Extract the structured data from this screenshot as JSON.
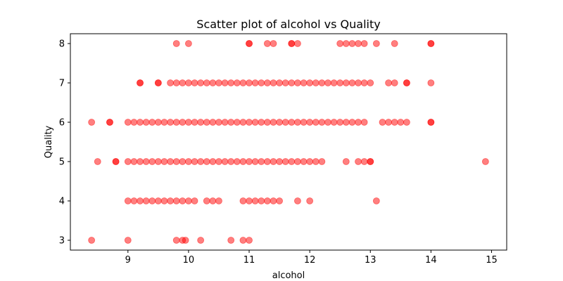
{
  "chart_data": {
    "type": "scatter",
    "title": "Scatter plot of alcohol vs Quality",
    "xlabel": "alcohol",
    "ylabel": "Quality",
    "xlim": [
      8.05,
      15.25
    ],
    "ylim": [
      2.75,
      8.25
    ],
    "xticks": [
      9,
      10,
      11,
      12,
      13,
      14,
      15
    ],
    "yticks": [
      3,
      4,
      5,
      6,
      7,
      8
    ],
    "grid": false,
    "marker_color": "#ff0000",
    "marker_alpha": 0.5,
    "series": [
      {
        "points": [
          [
            9.8,
            8
          ],
          [
            10.0,
            8
          ],
          [
            11.0,
            8
          ],
          [
            11.0,
            8
          ],
          [
            11.3,
            8
          ],
          [
            11.4,
            8
          ],
          [
            11.7,
            8
          ],
          [
            11.7,
            8
          ],
          [
            11.8,
            8
          ],
          [
            12.5,
            8
          ],
          [
            12.6,
            8
          ],
          [
            12.7,
            8
          ],
          [
            12.8,
            8
          ],
          [
            12.9,
            8
          ],
          [
            13.1,
            8
          ],
          [
            13.4,
            8
          ],
          [
            14.0,
            8
          ],
          [
            14.0,
            8
          ],
          [
            9.2,
            7
          ],
          [
            9.2,
            7
          ],
          [
            9.5,
            7
          ],
          [
            9.5,
            7
          ],
          [
            9.7,
            7
          ],
          [
            9.8,
            7
          ],
          [
            9.9,
            7
          ],
          [
            10.0,
            7
          ],
          [
            10.1,
            7
          ],
          [
            10.2,
            7
          ],
          [
            10.3,
            7
          ],
          [
            10.4,
            7
          ],
          [
            10.5,
            7
          ],
          [
            10.6,
            7
          ],
          [
            10.7,
            7
          ],
          [
            10.8,
            7
          ],
          [
            10.9,
            7
          ],
          [
            11.0,
            7
          ],
          [
            11.1,
            7
          ],
          [
            11.2,
            7
          ],
          [
            11.3,
            7
          ],
          [
            11.4,
            7
          ],
          [
            11.5,
            7
          ],
          [
            11.6,
            7
          ],
          [
            11.7,
            7
          ],
          [
            11.8,
            7
          ],
          [
            11.9,
            7
          ],
          [
            12.0,
            7
          ],
          [
            12.1,
            7
          ],
          [
            12.2,
            7
          ],
          [
            12.3,
            7
          ],
          [
            12.4,
            7
          ],
          [
            12.5,
            7
          ],
          [
            12.6,
            7
          ],
          [
            12.7,
            7
          ],
          [
            12.8,
            7
          ],
          [
            12.9,
            7
          ],
          [
            13.0,
            7
          ],
          [
            13.3,
            7
          ],
          [
            13.4,
            7
          ],
          [
            13.6,
            7
          ],
          [
            13.6,
            7
          ],
          [
            14.0,
            7
          ],
          [
            8.4,
            6
          ],
          [
            8.7,
            6
          ],
          [
            8.7,
            6
          ],
          [
            9.0,
            6
          ],
          [
            9.1,
            6
          ],
          [
            9.2,
            6
          ],
          [
            9.3,
            6
          ],
          [
            9.4,
            6
          ],
          [
            9.5,
            6
          ],
          [
            9.6,
            6
          ],
          [
            9.7,
            6
          ],
          [
            9.8,
            6
          ],
          [
            9.9,
            6
          ],
          [
            10.0,
            6
          ],
          [
            10.1,
            6
          ],
          [
            10.2,
            6
          ],
          [
            10.3,
            6
          ],
          [
            10.4,
            6
          ],
          [
            10.5,
            6
          ],
          [
            10.6,
            6
          ],
          [
            10.7,
            6
          ],
          [
            10.8,
            6
          ],
          [
            10.9,
            6
          ],
          [
            11.0,
            6
          ],
          [
            11.1,
            6
          ],
          [
            11.2,
            6
          ],
          [
            11.3,
            6
          ],
          [
            11.4,
            6
          ],
          [
            11.5,
            6
          ],
          [
            11.6,
            6
          ],
          [
            11.7,
            6
          ],
          [
            11.8,
            6
          ],
          [
            11.9,
            6
          ],
          [
            12.0,
            6
          ],
          [
            12.1,
            6
          ],
          [
            12.2,
            6
          ],
          [
            12.3,
            6
          ],
          [
            12.4,
            6
          ],
          [
            12.5,
            6
          ],
          [
            12.6,
            6
          ],
          [
            12.7,
            6
          ],
          [
            12.8,
            6
          ],
          [
            12.9,
            6
          ],
          [
            13.2,
            6
          ],
          [
            13.3,
            6
          ],
          [
            13.4,
            6
          ],
          [
            13.5,
            6
          ],
          [
            13.6,
            6
          ],
          [
            14.0,
            6
          ],
          [
            14.0,
            6
          ],
          [
            8.5,
            5
          ],
          [
            8.8,
            5
          ],
          [
            8.8,
            5
          ],
          [
            9.0,
            5
          ],
          [
            9.1,
            5
          ],
          [
            9.2,
            5
          ],
          [
            9.3,
            5
          ],
          [
            9.4,
            5
          ],
          [
            9.5,
            5
          ],
          [
            9.6,
            5
          ],
          [
            9.7,
            5
          ],
          [
            9.8,
            5
          ],
          [
            9.9,
            5
          ],
          [
            10.0,
            5
          ],
          [
            10.1,
            5
          ],
          [
            10.2,
            5
          ],
          [
            10.3,
            5
          ],
          [
            10.4,
            5
          ],
          [
            10.5,
            5
          ],
          [
            10.6,
            5
          ],
          [
            10.7,
            5
          ],
          [
            10.8,
            5
          ],
          [
            10.9,
            5
          ],
          [
            11.0,
            5
          ],
          [
            11.1,
            5
          ],
          [
            11.2,
            5
          ],
          [
            11.3,
            5
          ],
          [
            11.4,
            5
          ],
          [
            11.5,
            5
          ],
          [
            11.6,
            5
          ],
          [
            11.7,
            5
          ],
          [
            11.8,
            5
          ],
          [
            11.9,
            5
          ],
          [
            12.0,
            5
          ],
          [
            12.1,
            5
          ],
          [
            12.2,
            5
          ],
          [
            12.6,
            5
          ],
          [
            12.8,
            5
          ],
          [
            12.9,
            5
          ],
          [
            13.0,
            5
          ],
          [
            13.0,
            5
          ],
          [
            14.9,
            5
          ],
          [
            9.0,
            4
          ],
          [
            9.1,
            4
          ],
          [
            9.2,
            4
          ],
          [
            9.3,
            4
          ],
          [
            9.4,
            4
          ],
          [
            9.5,
            4
          ],
          [
            9.6,
            4
          ],
          [
            9.7,
            4
          ],
          [
            9.8,
            4
          ],
          [
            9.9,
            4
          ],
          [
            10.0,
            4
          ],
          [
            10.1,
            4
          ],
          [
            10.3,
            4
          ],
          [
            10.4,
            4
          ],
          [
            10.5,
            4
          ],
          [
            10.9,
            4
          ],
          [
            11.0,
            4
          ],
          [
            11.1,
            4
          ],
          [
            11.2,
            4
          ],
          [
            11.3,
            4
          ],
          [
            11.4,
            4
          ],
          [
            11.5,
            4
          ],
          [
            11.8,
            4
          ],
          [
            12.0,
            4
          ],
          [
            13.1,
            4
          ],
          [
            8.4,
            3
          ],
          [
            9.0,
            3
          ],
          [
            9.8,
            3
          ],
          [
            9.9,
            3
          ],
          [
            9.95,
            3
          ],
          [
            10.2,
            3
          ],
          [
            10.7,
            3
          ],
          [
            10.9,
            3
          ],
          [
            11.0,
            3
          ]
        ]
      }
    ]
  }
}
